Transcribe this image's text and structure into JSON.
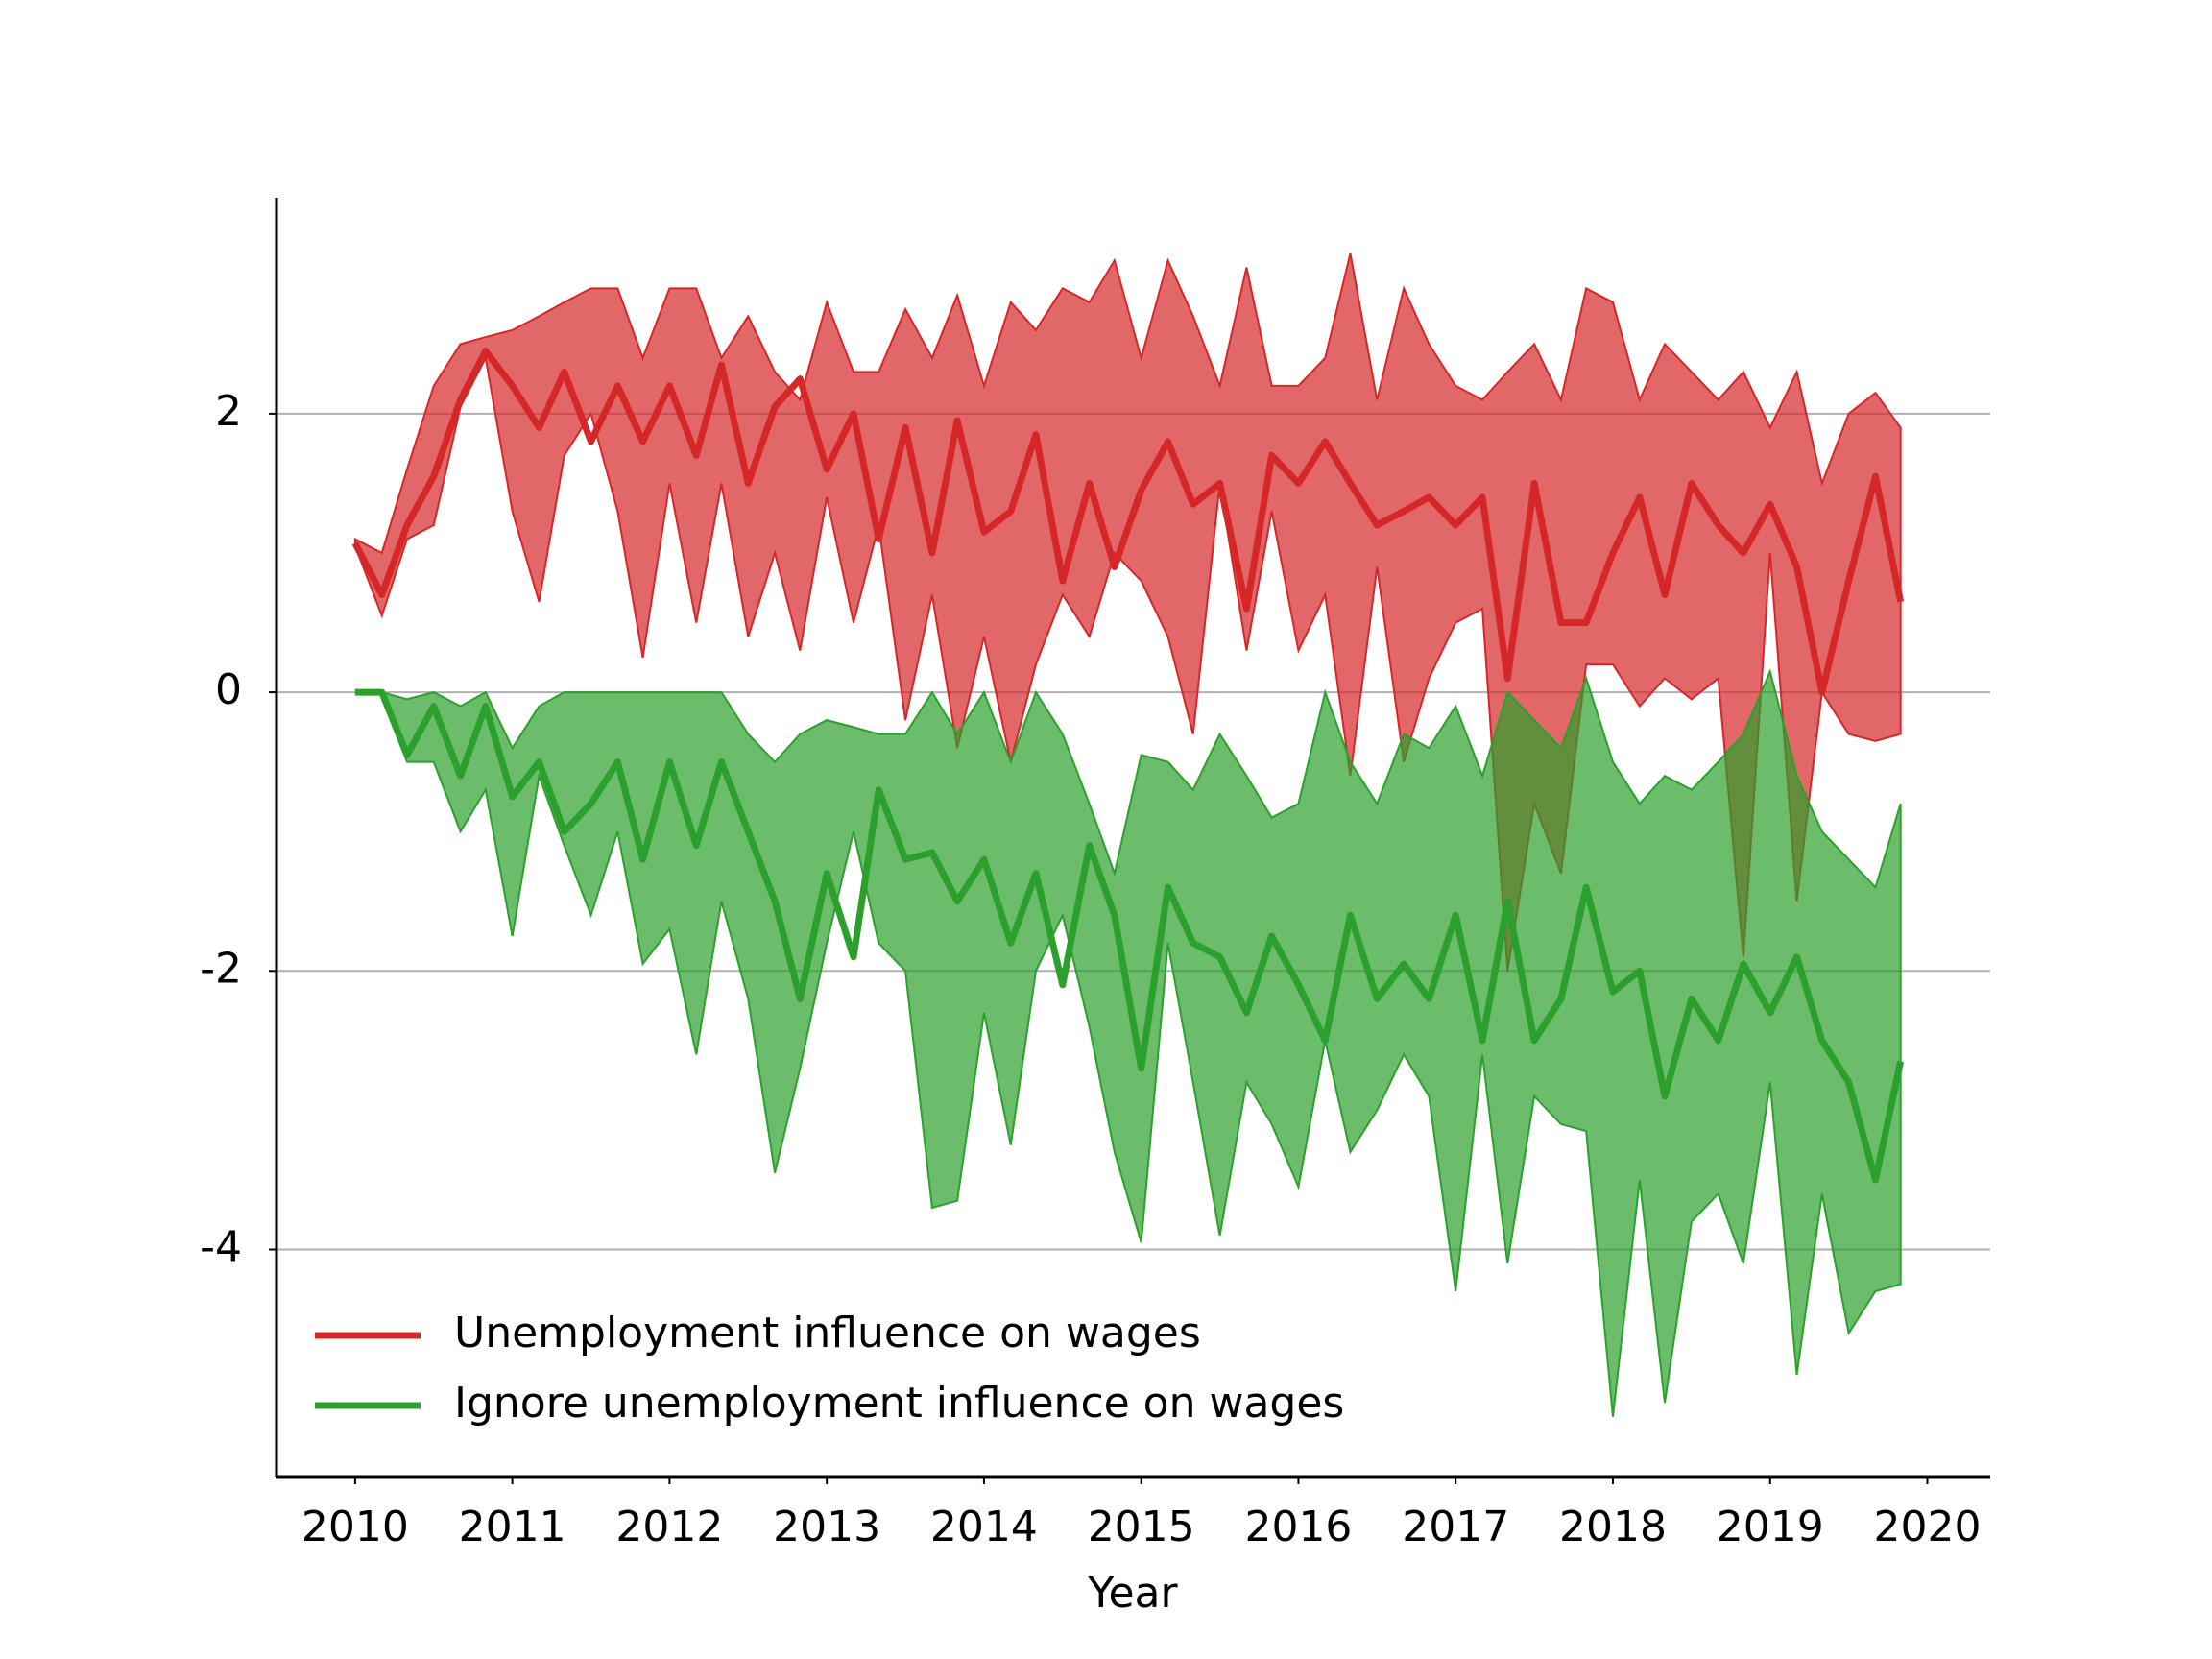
{
  "chart_data": {
    "type": "line",
    "xlabel": "Year",
    "x": [
      2010.0,
      2010.17,
      2010.33,
      2010.5,
      2010.67,
      2010.83,
      2011.0,
      2011.17,
      2011.33,
      2011.5,
      2011.67,
      2011.83,
      2012.0,
      2012.17,
      2012.33,
      2012.5,
      2012.67,
      2012.83,
      2013.0,
      2013.17,
      2013.33,
      2013.5,
      2013.67,
      2013.83,
      2014.0,
      2014.17,
      2014.33,
      2014.5,
      2014.67,
      2014.83,
      2015.0,
      2015.17,
      2015.33,
      2015.5,
      2015.67,
      2015.83,
      2016.0,
      2016.17,
      2016.33,
      2016.5,
      2016.67,
      2016.83,
      2017.0,
      2017.17,
      2017.33,
      2017.5,
      2017.67,
      2017.83,
      2018.0,
      2018.17,
      2018.33,
      2018.5,
      2018.67,
      2018.83,
      2019.0,
      2019.17,
      2019.33,
      2019.5,
      2019.67,
      2019.83
    ],
    "series": [
      {
        "name": "Unemployment influence on wages",
        "color": "#d62728",
        "values": [
          1.07,
          0.7,
          1.2,
          1.55,
          2.1,
          2.45,
          2.2,
          1.9,
          2.3,
          1.8,
          2.2,
          1.8,
          2.2,
          1.7,
          2.35,
          1.5,
          2.05,
          2.25,
          1.6,
          2.0,
          1.1,
          1.9,
          1.0,
          1.95,
          1.15,
          1.3,
          1.85,
          0.8,
          1.5,
          0.9,
          1.45,
          1.8,
          1.35,
          1.5,
          0.6,
          1.7,
          1.5,
          1.8,
          1.5,
          1.2,
          1.3,
          1.4,
          1.2,
          1.4,
          0.1,
          1.5,
          0.5,
          0.5,
          1.0,
          1.4,
          0.7,
          1.5,
          1.2,
          1.0,
          1.35,
          0.9,
          0.0,
          0.8,
          1.55,
          0.65
        ],
        "upper": [
          1.1,
          1.0,
          1.6,
          2.2,
          2.5,
          2.55,
          2.6,
          2.7,
          2.8,
          2.9,
          2.9,
          2.4,
          2.9,
          2.9,
          2.4,
          2.7,
          2.3,
          2.1,
          2.8,
          2.3,
          2.3,
          2.75,
          2.4,
          2.85,
          2.2,
          2.8,
          2.6,
          2.9,
          2.8,
          3.1,
          2.4,
          3.1,
          2.7,
          2.2,
          3.05,
          2.2,
          2.2,
          2.4,
          3.15,
          2.1,
          2.9,
          2.5,
          2.2,
          2.1,
          2.3,
          2.5,
          2.1,
          2.9,
          2.8,
          2.1,
          2.5,
          2.3,
          2.1,
          2.3,
          1.9,
          2.3,
          1.5,
          2.0,
          2.15,
          1.9
        ],
        "lower": [
          1.05,
          0.55,
          1.1,
          1.2,
          2.05,
          2.4,
          1.3,
          0.65,
          1.7,
          2.0,
          1.3,
          0.25,
          1.5,
          0.5,
          1.5,
          0.4,
          1.0,
          0.3,
          1.4,
          0.5,
          1.2,
          -0.2,
          0.7,
          -0.4,
          0.4,
          -0.5,
          0.2,
          0.7,
          0.4,
          1.0,
          0.8,
          0.4,
          -0.3,
          1.5,
          0.3,
          1.3,
          0.3,
          0.7,
          -0.6,
          0.9,
          -0.5,
          0.1,
          0.5,
          0.6,
          -2.0,
          -0.8,
          -1.3,
          0.2,
          0.2,
          -0.1,
          0.1,
          -0.05,
          0.1,
          -1.9,
          1.0,
          -1.5,
          0.0,
          -0.3,
          -0.35,
          -0.3
        ]
      },
      {
        "name": "Ignore unemployment influence on wages",
        "color": "#2ca02c",
        "values": [
          0,
          0,
          -0.45,
          -0.1,
          -0.6,
          -0.1,
          -0.75,
          -0.5,
          -1.0,
          -0.8,
          -0.5,
          -1.2,
          -0.5,
          -1.1,
          -0.5,
          -1.0,
          -1.5,
          -2.2,
          -1.3,
          -1.9,
          -0.7,
          -1.2,
          -1.15,
          -1.5,
          -1.2,
          -1.8,
          -1.3,
          -2.1,
          -1.1,
          -1.6,
          -2.7,
          -1.4,
          -1.8,
          -1.9,
          -2.3,
          -1.75,
          -2.1,
          -2.5,
          -1.6,
          -2.2,
          -1.95,
          -2.2,
          -1.6,
          -2.5,
          -1.5,
          -2.5,
          -2.2,
          -1.4,
          -2.15,
          -2.0,
          -2.9,
          -2.2,
          -2.5,
          -1.95,
          -2.3,
          -1.9,
          -2.5,
          -2.8,
          -3.5,
          -2.65
        ],
        "upper": [
          0,
          0,
          -0.05,
          0,
          -0.1,
          0,
          -0.4,
          -0.1,
          0,
          0,
          0,
          0,
          0,
          0,
          0,
          -0.3,
          -0.5,
          -0.3,
          -0.2,
          -0.25,
          -0.3,
          -0.3,
          0,
          -0.3,
          0,
          -0.5,
          0,
          -0.3,
          -0.8,
          -1.3,
          -0.45,
          -0.5,
          -0.7,
          -0.3,
          -0.6,
          -0.9,
          -0.8,
          0,
          -0.5,
          -0.8,
          -0.3,
          -0.4,
          -0.1,
          -0.6,
          0,
          -0.2,
          -0.4,
          0.1,
          -0.5,
          -0.8,
          -0.6,
          -0.7,
          -0.5,
          -0.3,
          0.15,
          -0.6,
          -1.0,
          -1.2,
          -1.4,
          -0.8
        ],
        "lower": [
          0,
          0,
          -0.5,
          -0.5,
          -1.0,
          -0.7,
          -1.75,
          -0.6,
          -1.1,
          -1.6,
          -1.0,
          -1.95,
          -1.7,
          -2.6,
          -1.5,
          -2.2,
          -3.45,
          -2.7,
          -1.8,
          -1.0,
          -1.8,
          -2.0,
          -3.7,
          -3.65,
          -2.3,
          -3.25,
          -2.0,
          -1.6,
          -2.4,
          -3.3,
          -3.95,
          -1.8,
          -2.8,
          -3.9,
          -2.8,
          -3.1,
          -3.55,
          -2.5,
          -3.3,
          -3.0,
          -2.6,
          -2.9,
          -4.3,
          -2.6,
          -4.1,
          -2.9,
          -3.1,
          -3.15,
          -5.2,
          -3.5,
          -5.1,
          -3.8,
          -3.6,
          -4.1,
          -2.8,
          -4.9,
          -3.6,
          -4.6,
          -4.3,
          -4.25
        ]
      }
    ],
    "xlim": [
      2009.5,
      2020.4
    ],
    "xticks": [
      2010,
      2011,
      2012,
      2013,
      2014,
      2015,
      2016,
      2017,
      2018,
      2019,
      2020
    ],
    "ylim": [
      -5.63,
      3.55
    ],
    "yticks": [
      -4,
      -2,
      0,
      2
    ],
    "grid": true,
    "legend": "lower left"
  }
}
